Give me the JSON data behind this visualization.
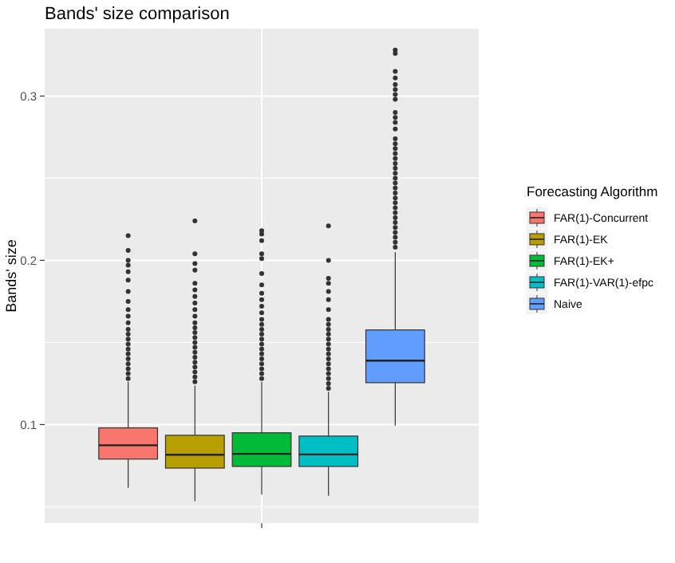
{
  "chart_data": {
    "type": "box",
    "title": "Bands' size comparison",
    "ylabel": "Bands' size",
    "legend_title": "Forecasting Algorithm",
    "categories": [
      null
    ],
    "ylim": [
      0.04,
      0.341
    ],
    "yticks": [
      0.1,
      0.2,
      0.3
    ],
    "grid": true,
    "legend": "right",
    "series": [
      {
        "name": "FAR(1)-Concurrent",
        "color": "#f8766d",
        "boxes": [
          {
            "low": 0.0615,
            "q1": 0.079,
            "median": 0.0874,
            "q3": 0.098,
            "high": 0.126,
            "outliers": [
              0.128,
              0.131,
              0.134,
              0.137,
              0.14,
              0.143,
              0.146,
              0.149,
              0.152,
              0.155,
              0.158,
              0.162,
              0.166,
              0.17,
              0.175,
              0.181,
              0.188,
              0.193,
              0.197,
              0.2,
              0.206,
              0.215
            ]
          }
        ]
      },
      {
        "name": "FAR(1)-EK",
        "color": "#b79f00",
        "boxes": [
          {
            "low": 0.0534,
            "q1": 0.0735,
            "median": 0.0816,
            "q3": 0.0935,
            "high": 0.1236,
            "outliers": [
              0.126,
              0.129,
              0.132,
              0.135,
              0.138,
              0.141,
              0.144,
              0.147,
              0.15,
              0.153,
              0.156,
              0.159,
              0.162,
              0.166,
              0.17,
              0.174,
              0.178,
              0.182,
              0.186,
              0.194,
              0.198,
              0.204,
              0.224
            ]
          }
        ]
      },
      {
        "name": "FAR(1)-EK+",
        "color": "#00ba38",
        "boxes": [
          {
            "low": 0.0573,
            "q1": 0.0745,
            "median": 0.0822,
            "q3": 0.095,
            "high": 0.126,
            "outliers": [
              0.128,
              0.131,
              0.134,
              0.137,
              0.14,
              0.143,
              0.146,
              0.149,
              0.152,
              0.155,
              0.158,
              0.161,
              0.164,
              0.168,
              0.172,
              0.176,
              0.18,
              0.185,
              0.192,
              0.201,
              0.204,
              0.212,
              0.216,
              0.218
            ]
          }
        ]
      },
      {
        "name": "FAR(1)-VAR(1)-efpc",
        "color": "#00bfc4",
        "boxes": [
          {
            "low": 0.0566,
            "q1": 0.0745,
            "median": 0.0818,
            "q3": 0.093,
            "high": 0.12,
            "outliers": [
              0.122,
              0.125,
              0.128,
              0.131,
              0.134,
              0.137,
              0.14,
              0.143,
              0.146,
              0.149,
              0.152,
              0.155,
              0.158,
              0.161,
              0.164,
              0.17,
              0.176,
              0.181,
              0.186,
              0.189,
              0.2,
              0.221
            ]
          }
        ]
      },
      {
        "name": "Naive",
        "color": "#619cff",
        "boxes": [
          {
            "low": 0.0993,
            "q1": 0.1255,
            "median": 0.1389,
            "q3": 0.1576,
            "high": 0.205,
            "outliers": [
              0.208,
              0.211,
              0.214,
              0.217,
              0.22,
              0.223,
              0.226,
              0.229,
              0.232,
              0.235,
              0.238,
              0.241,
              0.244,
              0.247,
              0.25,
              0.253,
              0.256,
              0.259,
              0.262,
              0.265,
              0.268,
              0.271,
              0.274,
              0.28,
              0.284,
              0.287,
              0.29,
              0.298,
              0.301,
              0.304,
              0.307,
              0.311,
              0.315,
              0.326,
              0.328
            ]
          }
        ]
      }
    ]
  }
}
